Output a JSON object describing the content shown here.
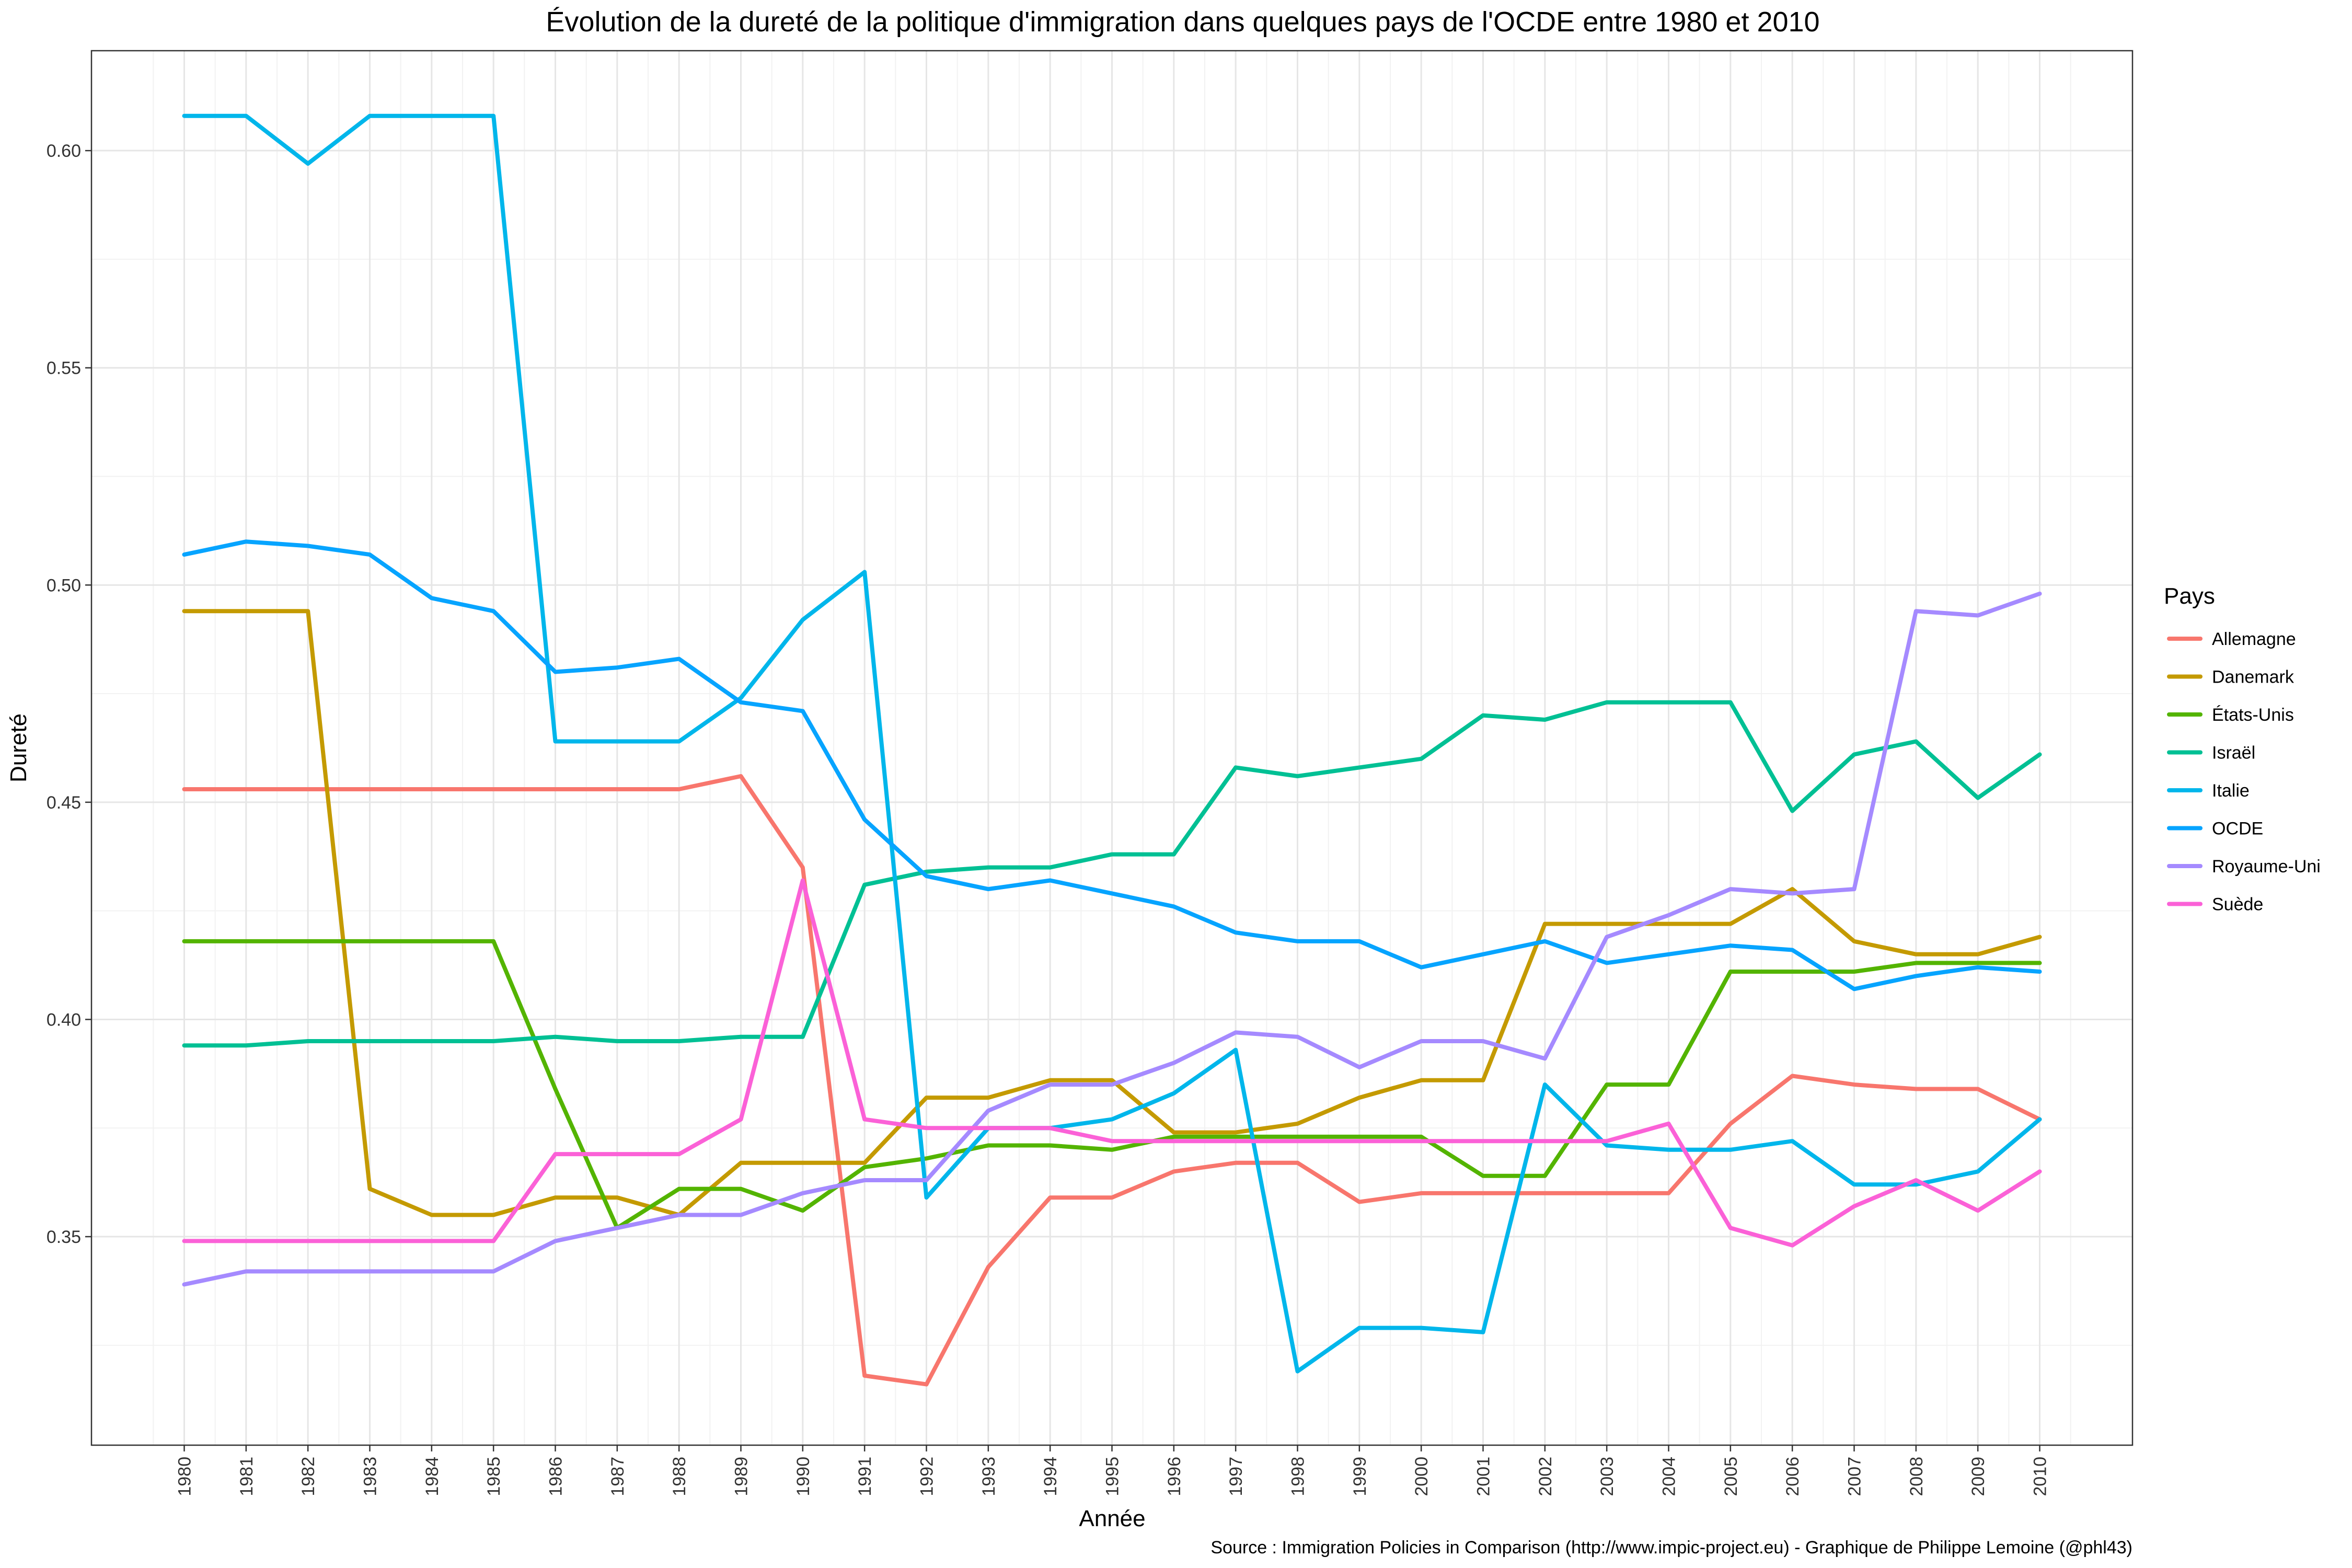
{
  "chart_data": {
    "type": "line",
    "title": "Évolution de la dureté de la politique d'immigration dans quelques pays de l'OCDE entre 1980 et 2010",
    "xlabel": "Année",
    "ylabel": "Dureté",
    "caption": "Source : Immigration Policies in Comparison (http://www.impic-project.eu) - Graphique de Philippe Lemoine (@phl43)",
    "legend_title": "Pays",
    "legend_position": "right",
    "grid": true,
    "x": [
      1980,
      1981,
      1982,
      1983,
      1984,
      1985,
      1986,
      1987,
      1988,
      1989,
      1990,
      1991,
      1992,
      1993,
      1994,
      1995,
      1996,
      1997,
      1998,
      1999,
      2000,
      2001,
      2002,
      2003,
      2004,
      2005,
      2006,
      2007,
      2008,
      2009,
      2010
    ],
    "x_ticks": [
      "1980",
      "1981",
      "1982",
      "1983",
      "1984",
      "1985",
      "1986",
      "1987",
      "1988",
      "1989",
      "1990",
      "1991",
      "1992",
      "1993",
      "1994",
      "1995",
      "1996",
      "1997",
      "1998",
      "1999",
      "2000",
      "2001",
      "2002",
      "2003",
      "2004",
      "2005",
      "2006",
      "2007",
      "2008",
      "2009",
      "2010"
    ],
    "y_ticks": [
      "0.35",
      "0.40",
      "0.45",
      "0.50",
      "0.55",
      "0.60"
    ],
    "ylim": [
      0.302,
      0.623
    ],
    "series": [
      {
        "name": "Allemagne",
        "color": "#F8766D",
        "values": [
          0.453,
          0.453,
          0.453,
          0.453,
          0.453,
          0.453,
          0.453,
          0.453,
          0.453,
          0.456,
          0.435,
          0.318,
          0.316,
          0.343,
          0.359,
          0.359,
          0.365,
          0.367,
          0.367,
          0.358,
          0.36,
          0.36,
          0.36,
          0.36,
          0.36,
          0.376,
          0.387,
          0.385,
          0.384,
          0.384,
          0.377
        ]
      },
      {
        "name": "Danemark",
        "color": "#C49A00",
        "values": [
          0.494,
          0.494,
          0.494,
          0.361,
          0.355,
          0.355,
          0.359,
          0.359,
          0.355,
          0.367,
          0.367,
          0.367,
          0.382,
          0.382,
          0.386,
          0.386,
          0.374,
          0.374,
          0.376,
          0.382,
          0.386,
          0.386,
          0.422,
          0.422,
          0.422,
          0.422,
          0.43,
          0.418,
          0.415,
          0.415,
          0.419
        ]
      },
      {
        "name": "États-Unis",
        "color": "#53B400",
        "values": [
          0.418,
          0.418,
          0.418,
          0.418,
          0.418,
          0.418,
          0.384,
          0.352,
          0.361,
          0.361,
          0.356,
          0.366,
          0.368,
          0.371,
          0.371,
          0.37,
          0.373,
          0.373,
          0.373,
          0.373,
          0.373,
          0.364,
          0.364,
          0.385,
          0.385,
          0.411,
          0.411,
          0.411,
          0.413,
          0.413,
          0.413
        ]
      },
      {
        "name": "Israël",
        "color": "#00C094",
        "values": [
          0.394,
          0.394,
          0.395,
          0.395,
          0.395,
          0.395,
          0.396,
          0.395,
          0.395,
          0.396,
          0.396,
          0.431,
          0.434,
          0.435,
          0.435,
          0.438,
          0.438,
          0.458,
          0.456,
          0.458,
          0.46,
          0.47,
          0.469,
          0.473,
          0.473,
          0.473,
          0.448,
          0.461,
          0.464,
          0.451,
          0.461
        ]
      },
      {
        "name": "Italie",
        "color": "#00B6EB",
        "values": [
          0.608,
          0.608,
          0.597,
          0.608,
          0.608,
          0.608,
          0.464,
          0.464,
          0.464,
          0.474,
          0.492,
          0.503,
          0.359,
          0.375,
          0.375,
          0.377,
          0.383,
          0.393,
          0.319,
          0.329,
          0.329,
          0.328,
          0.385,
          0.371,
          0.37,
          0.37,
          0.372,
          0.362,
          0.362,
          0.365,
          0.377
        ]
      },
      {
        "name": "OCDE",
        "color": "#06A4FF",
        "values": [
          0.507,
          0.51,
          0.509,
          0.507,
          0.497,
          0.494,
          0.48,
          0.481,
          0.483,
          0.473,
          0.471,
          0.446,
          0.433,
          0.43,
          0.432,
          0.429,
          0.426,
          0.42,
          0.418,
          0.418,
          0.412,
          0.415,
          0.418,
          0.413,
          0.415,
          0.417,
          0.416,
          0.407,
          0.41,
          0.412,
          0.411
        ]
      },
      {
        "name": "Royaume-Uni",
        "color": "#A58AFF",
        "values": [
          0.339,
          0.342,
          0.342,
          0.342,
          0.342,
          0.342,
          0.349,
          0.352,
          0.355,
          0.355,
          0.36,
          0.363,
          0.363,
          0.379,
          0.385,
          0.385,
          0.39,
          0.397,
          0.396,
          0.389,
          0.395,
          0.395,
          0.391,
          0.419,
          0.424,
          0.43,
          0.429,
          0.43,
          0.494,
          0.493,
          0.498
        ]
      },
      {
        "name": "Suède",
        "color": "#FB61D7",
        "values": [
          0.349,
          0.349,
          0.349,
          0.349,
          0.349,
          0.349,
          0.369,
          0.369,
          0.369,
          0.377,
          0.432,
          0.377,
          0.375,
          0.375,
          0.375,
          0.372,
          0.372,
          0.372,
          0.372,
          0.372,
          0.372,
          0.372,
          0.372,
          0.372,
          0.376,
          0.352,
          0.348,
          0.357,
          0.363,
          0.356,
          0.365
        ]
      }
    ]
  }
}
